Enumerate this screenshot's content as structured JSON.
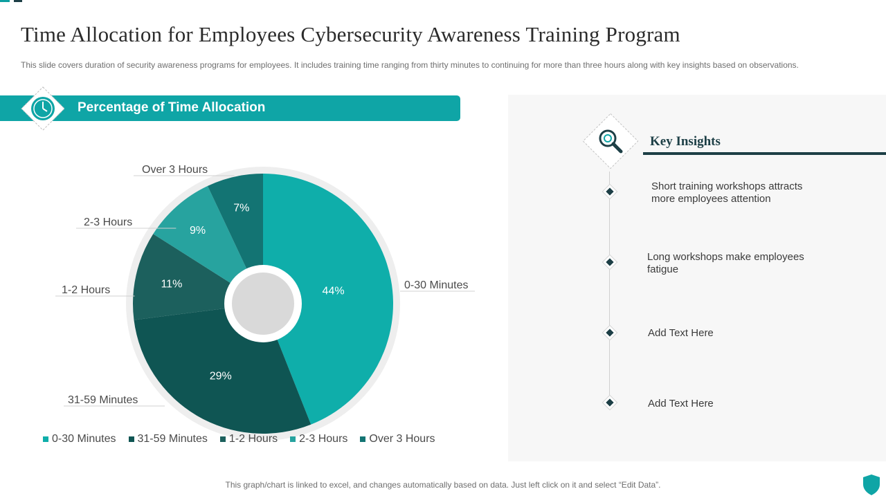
{
  "title": "Time Allocation for Employees Cybersecurity Awareness Training Program",
  "subtitle": "This slide covers duration of security awareness programs for employees. It includes training time ranging from thirty minutes to continuing for more than three hours along with key insights based on observations.",
  "banner_title": "Percentage of Time Allocation",
  "chart_data": {
    "type": "pie",
    "title": "Percentage of Time Allocation",
    "categories": [
      "0-30 Minutes",
      "31-59 Minutes",
      "1-2 Hours",
      "2-3 Hours",
      "Over 3 Hours"
    ],
    "values": [
      44,
      29,
      11,
      9,
      7
    ],
    "labels": [
      "44%",
      "29%",
      "11%",
      "9%",
      "7%"
    ],
    "colors": [
      "#0faeaa",
      "#0f5553",
      "#1c605d",
      "#27a39f",
      "#137473"
    ],
    "legend": "bottom"
  },
  "insights": {
    "title": "Key Insights",
    "items": [
      "Short training workshops attracts more employees attention",
      "Long workshops make employees fatigue",
      "Add Text Here",
      "Add Text Here"
    ]
  },
  "footer": "This graph/chart is linked to excel,  and changes automatically based on data. Just left click on it and select “Edit Data”.",
  "icons": {
    "clock": "clock-icon",
    "magnifier": "magnifier-icon",
    "shield": "shield-icon"
  },
  "colors": {
    "teal": "#0fa5a6",
    "dark": "#1d3f46"
  }
}
